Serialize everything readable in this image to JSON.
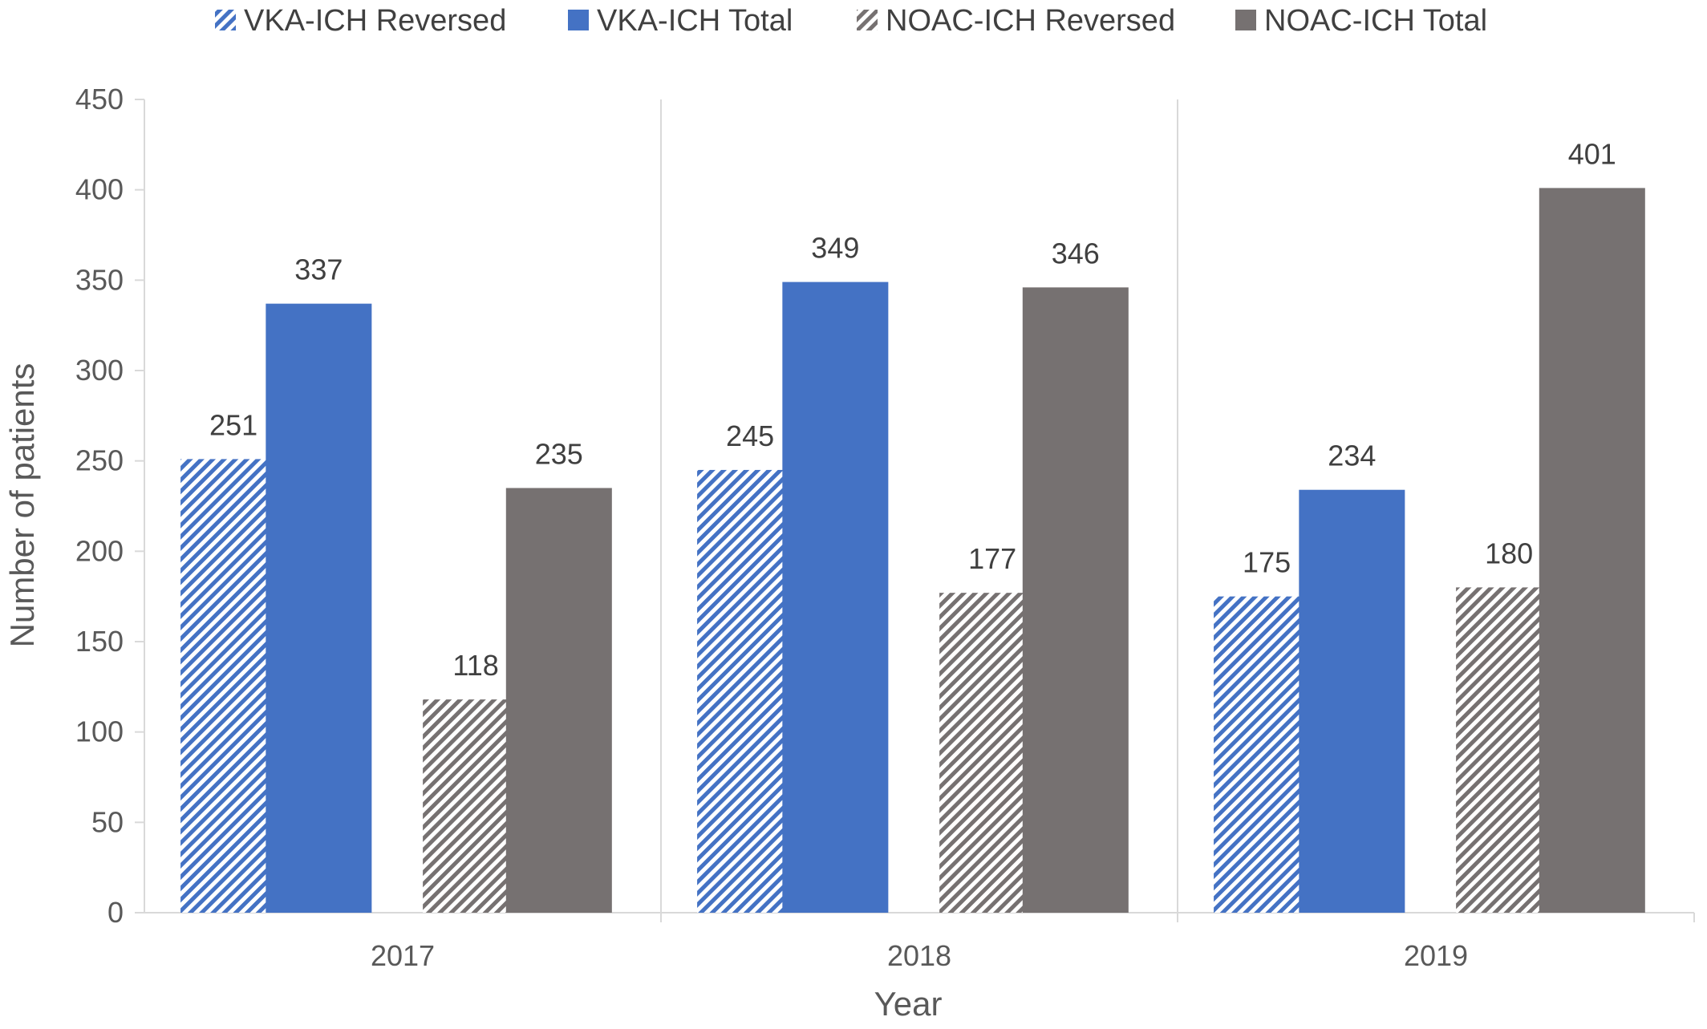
{
  "chart_data": {
    "type": "bar",
    "categories": [
      "2017",
      "2018",
      "2019"
    ],
    "series": [
      {
        "name": "VKA-ICH Reversed",
        "values": [
          251,
          245,
          175
        ],
        "color": "#4472C4",
        "pattern": "hatched"
      },
      {
        "name": "VKA-ICH Total",
        "values": [
          337,
          349,
          234
        ],
        "color": "#4472C4",
        "pattern": "solid"
      },
      {
        "name": "NOAC-ICH Reversed",
        "values": [
          118,
          177,
          180
        ],
        "color": "#767171",
        "pattern": "hatched"
      },
      {
        "name": "NOAC-ICH Total",
        "values": [
          235,
          346,
          401
        ],
        "color": "#767171",
        "pattern": "solid"
      }
    ],
    "xlabel": "Year",
    "ylabel": "Number of patients",
    "ylim": [
      0,
      450
    ],
    "yticks": [
      "0",
      "50",
      "100",
      "150",
      "200",
      "250",
      "300",
      "350",
      "400",
      "450"
    ],
    "grid": false,
    "legend_position": "top",
    "data_labels": true
  }
}
